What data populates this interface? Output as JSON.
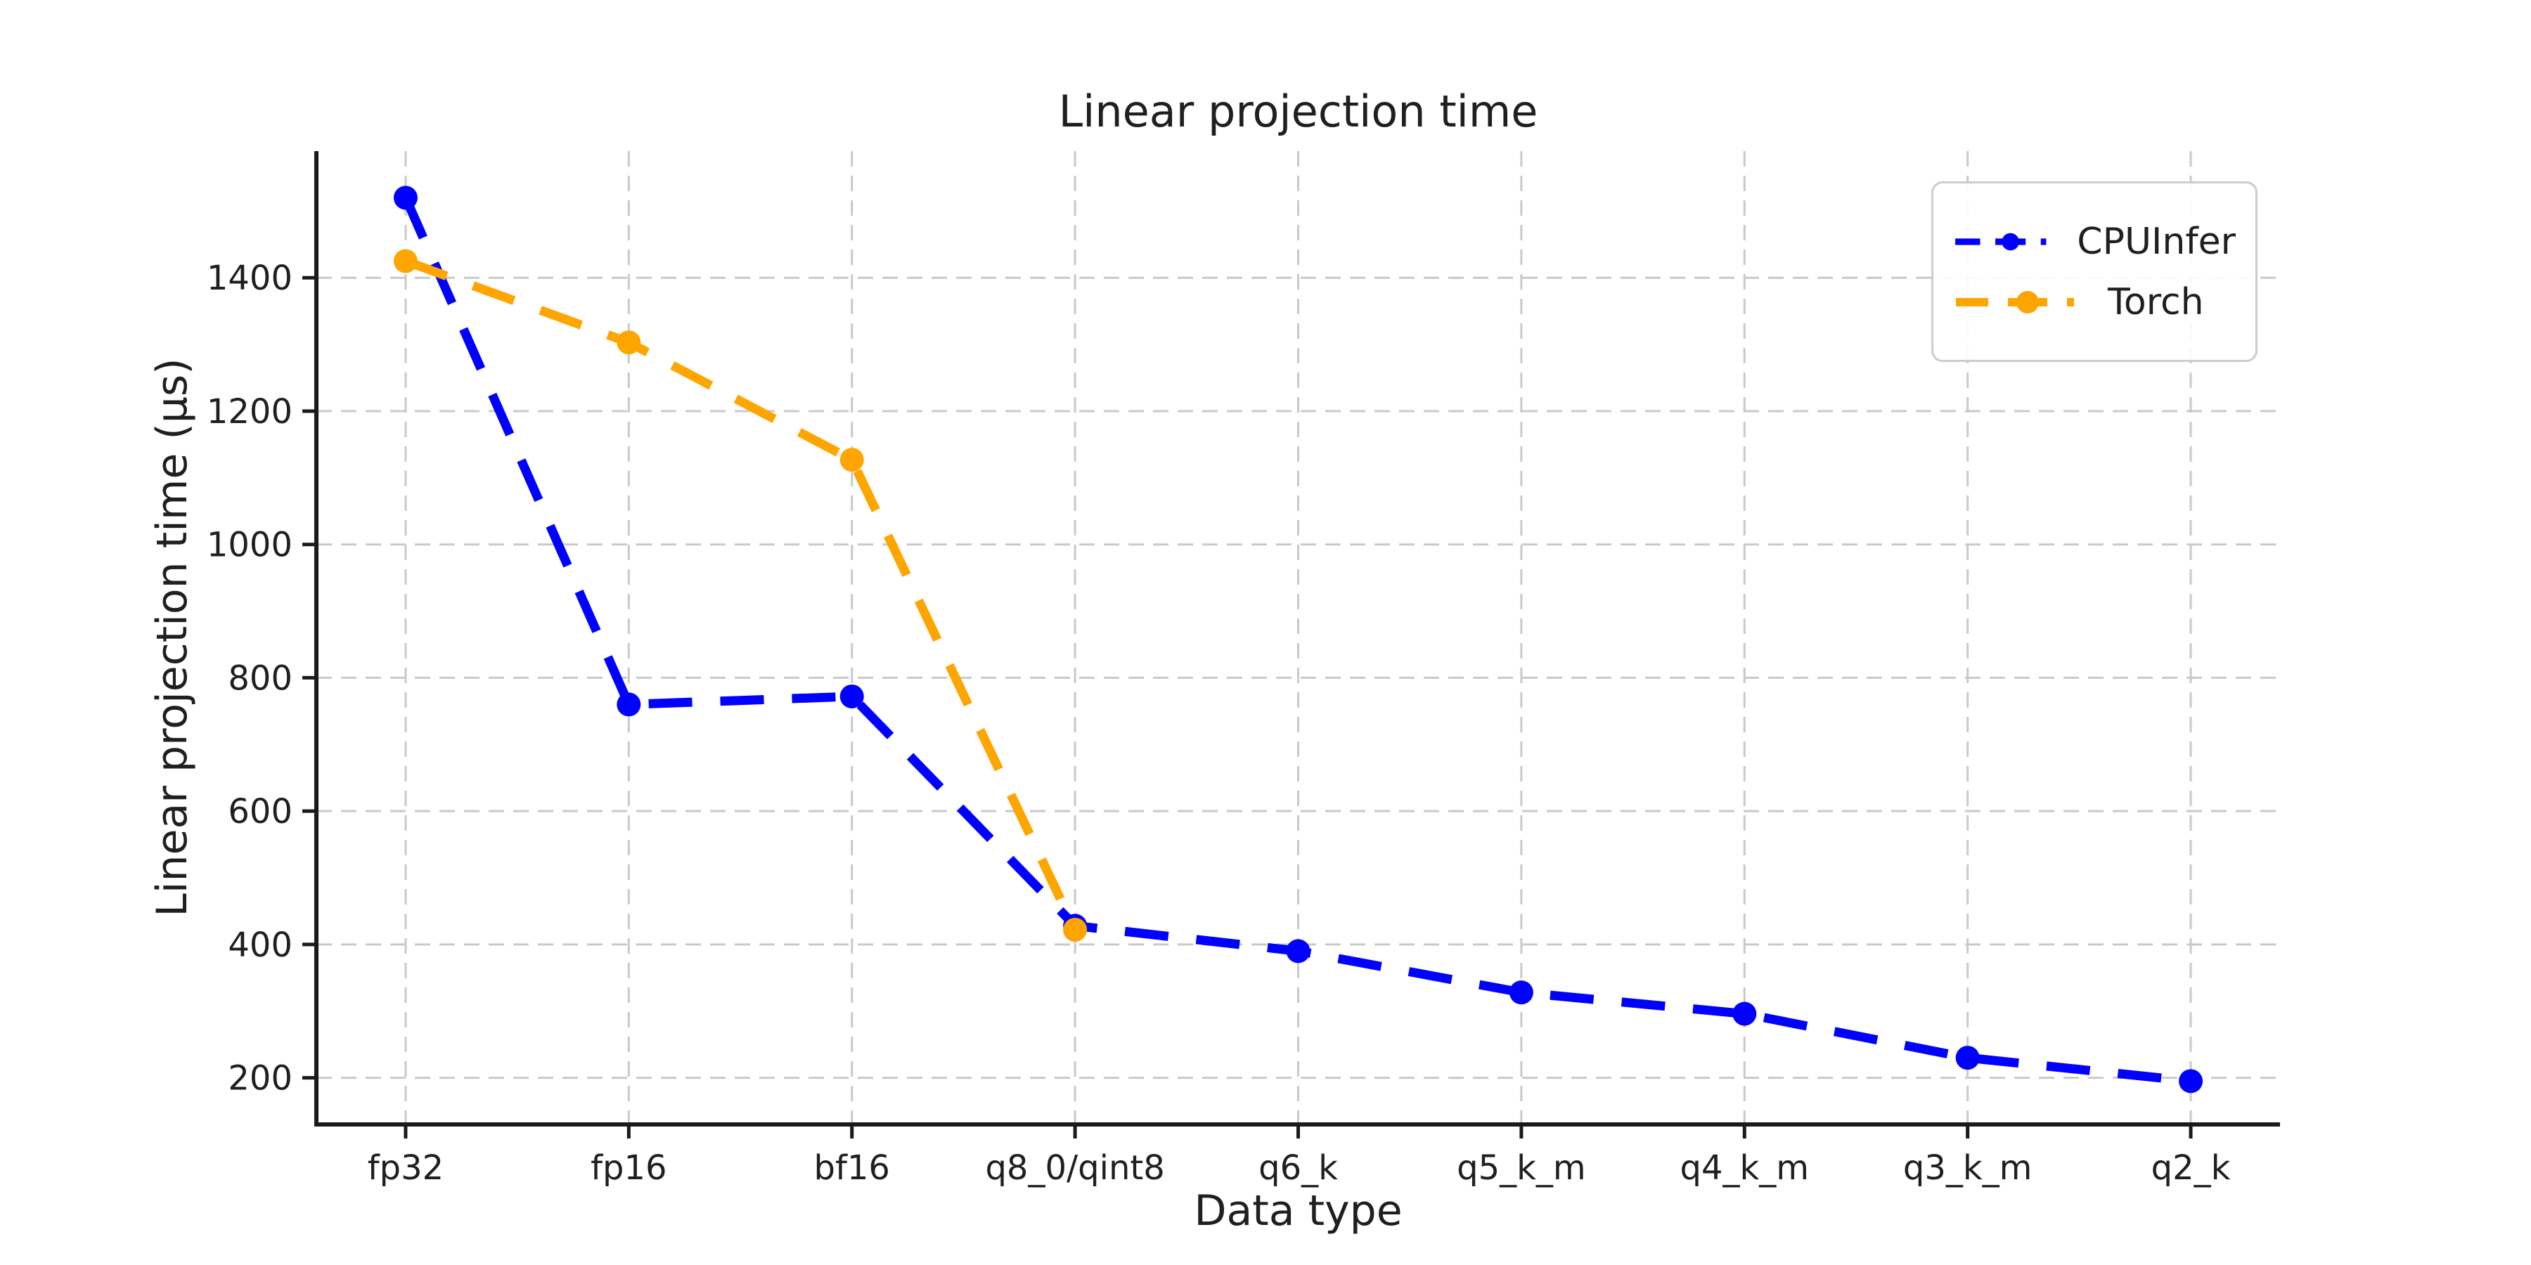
{
  "chart_data": {
    "type": "line",
    "title": "Linear projection time",
    "xlabel": "Data type",
    "ylabel": "Linear projection time (µs)",
    "categories": [
      "fp32",
      "fp16",
      "bf16",
      "q8_0/qint8",
      "q6_k",
      "q5_k_m",
      "q4_k_m",
      "q3_k_m",
      "q2_k"
    ],
    "series": [
      {
        "name": "CPUInfer",
        "color": "#0000ff",
        "values": [
          1520,
          760,
          772,
          428,
          390,
          328,
          296,
          230,
          195
        ]
      },
      {
        "name": "Torch",
        "color": "#ffa500",
        "values": [
          1425,
          1303,
          1127,
          422,
          null,
          null,
          null,
          null,
          null
        ]
      }
    ],
    "yticks": [
      200,
      400,
      600,
      800,
      1000,
      1200,
      1400
    ],
    "ylim": [
      130,
      1590
    ],
    "grid": {
      "visible": true,
      "style": "dashed",
      "color": "#c9c9c9"
    },
    "legend": {
      "position": "upper right"
    },
    "line_style": "dashed",
    "marker": "circle",
    "axis_color": "#1a1a1a",
    "text_color": "#1f1f1f",
    "background": "#ffffff"
  }
}
